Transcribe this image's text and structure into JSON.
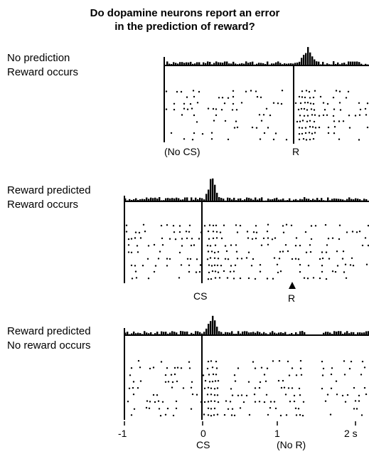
{
  "title": {
    "line1": "Do dopamine neurons report an error",
    "line2": "in the prediction of reward?"
  },
  "panels": [
    {
      "condition_line1": "No prediction",
      "condition_line2": "Reward occurs",
      "label_left": "(No CS)",
      "label_event": "R"
    },
    {
      "condition_line1": "Reward predicted",
      "condition_line2": "Reward occurs",
      "label_left": "CS",
      "label_event": "R"
    },
    {
      "condition_line1": "Reward predicted",
      "condition_line2": "No reward occurs",
      "label_left": "CS",
      "label_event": "(No R)"
    }
  ],
  "time_axis": {
    "ticks": [
      "-1",
      "0",
      "1",
      "2 s"
    ]
  },
  "colors": {
    "ink": "#000000",
    "background": "#ffffff"
  }
}
